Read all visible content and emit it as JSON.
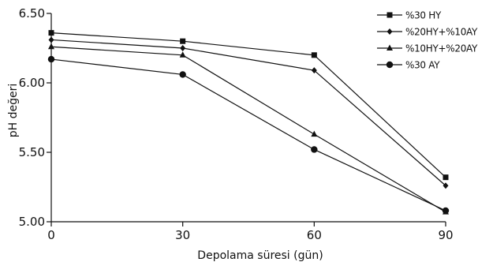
{
  "chart_data": {
    "type": "line",
    "title": "",
    "xlabel": "Depolama süresi (gün)",
    "ylabel": "pH değeri",
    "x": [
      0,
      30,
      60,
      90
    ],
    "x_tick_labels": [
      "0",
      "30",
      "60",
      "90"
    ],
    "xlim": [
      0,
      90
    ],
    "ylim": [
      5.0,
      6.5
    ],
    "y_ticks": [
      5.0,
      5.5,
      6.0,
      6.5
    ],
    "y_tick_labels": [
      "5.00",
      "5.50",
      "6.00",
      "6.50"
    ],
    "grid": false,
    "legend_position": "top-right",
    "color": "#111111",
    "series": [
      {
        "name": "%30 HY",
        "marker": "square",
        "values": [
          6.36,
          6.3,
          6.2,
          5.32
        ]
      },
      {
        "name": "%20HY+%10AY",
        "marker": "diamond",
        "values": [
          6.31,
          6.25,
          6.09,
          5.26
        ]
      },
      {
        "name": "%10HY+%20AY",
        "marker": "triangle",
        "values": [
          6.26,
          6.2,
          5.63,
          5.07
        ]
      },
      {
        "name": "%30 AY",
        "marker": "circle",
        "values": [
          6.17,
          6.06,
          5.52,
          5.08
        ]
      }
    ]
  }
}
